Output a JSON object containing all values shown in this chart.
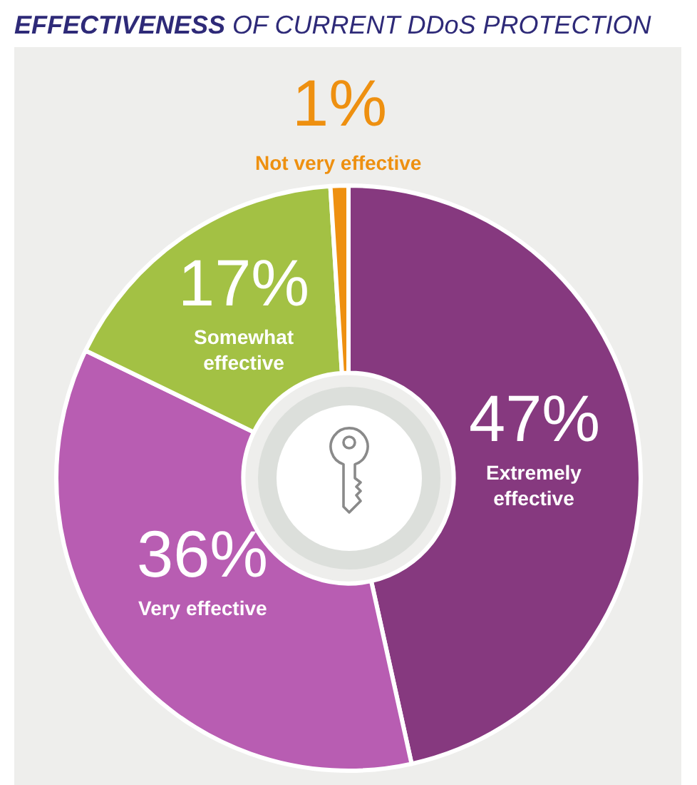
{
  "chart_data": {
    "type": "donut",
    "title": "EFFECTIVENESS OF CURRENT DDoS PROTECTION",
    "categories": [
      "Extremely effective",
      "Very effective",
      "Somewhat effective",
      "Not very effective"
    ],
    "values": [
      47,
      36,
      17,
      1
    ],
    "colors": [
      "#86397f",
      "#b85db2",
      "#a3c144",
      "#ee9010"
    ],
    "value_labels": [
      "47%",
      "36%",
      "17%",
      "1%"
    ],
    "legend": false
  }
}
